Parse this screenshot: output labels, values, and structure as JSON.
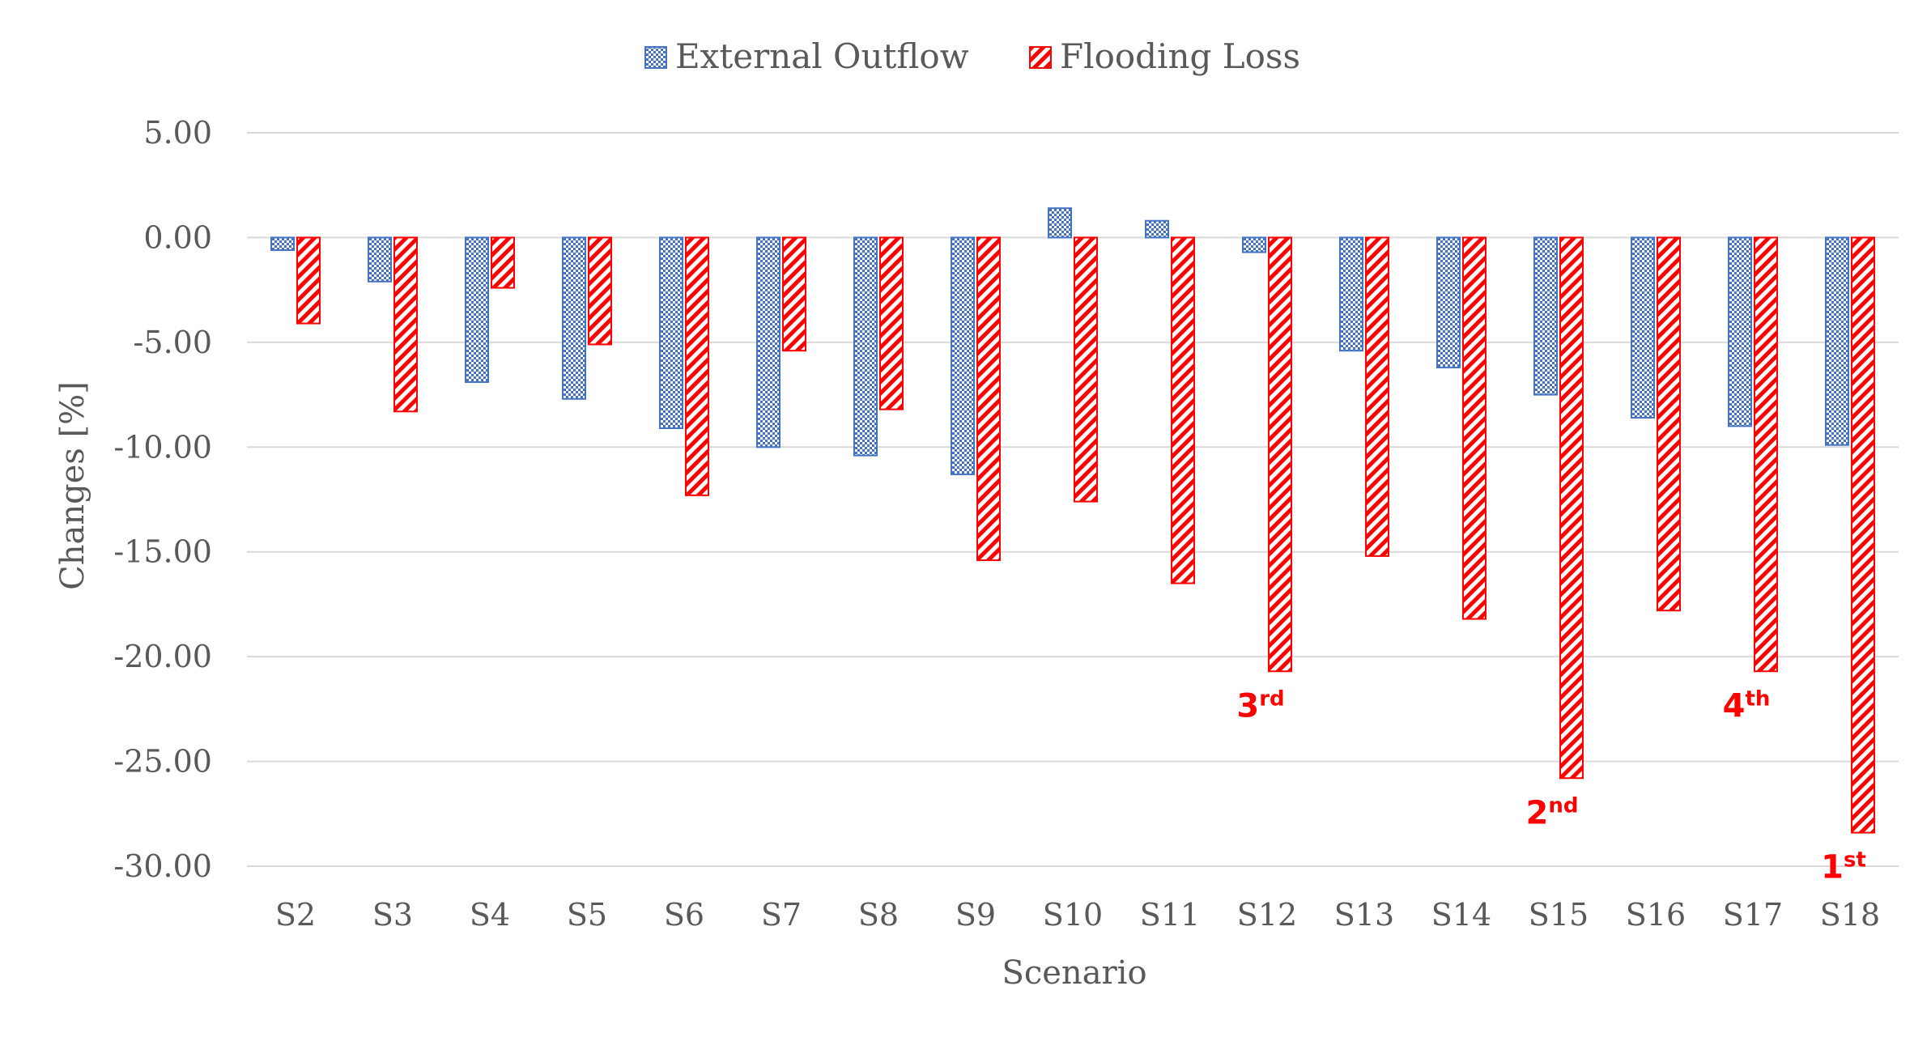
{
  "chart_data": {
    "type": "bar",
    "xlabel": "Scenario",
    "ylabel": "Changes [%]",
    "ylim": [
      -30,
      5
    ],
    "yticks": [
      "5.00",
      "0.00",
      "-5.00",
      "-10.00",
      "-15.00",
      "-20.00",
      "-25.00",
      "-30.00"
    ],
    "ytick_values": [
      5,
      0,
      -5,
      -10,
      -15,
      -20,
      -25,
      -30
    ],
    "grid": "horizontal",
    "legend_position": "top",
    "categories": [
      "S2",
      "S3",
      "S4",
      "S5",
      "S6",
      "S7",
      "S8",
      "S9",
      "S10",
      "S11",
      "S12",
      "S13",
      "S14",
      "S15",
      "S16",
      "S17",
      "S18"
    ],
    "series": [
      {
        "name": "External Outflow",
        "color": "#4472c4",
        "pattern": "dotted-grid",
        "values": [
          -0.6,
          -2.1,
          -6.9,
          -7.7,
          -9.1,
          -10.0,
          -10.4,
          -11.3,
          1.4,
          0.8,
          -0.7,
          -5.4,
          -6.2,
          -7.5,
          -8.6,
          -9.0,
          -9.9
        ]
      },
      {
        "name": "Flooding Loss",
        "color": "#ff0000",
        "pattern": "diagonal-stripes",
        "values": [
          -4.1,
          -8.3,
          -2.4,
          -5.1,
          -12.3,
          -5.4,
          -8.2,
          -15.4,
          -12.6,
          -16.5,
          -20.7,
          -15.2,
          -18.2,
          -25.8,
          -17.8,
          -20.7,
          -28.4
        ]
      }
    ],
    "annotations": [
      {
        "category": "S12",
        "num": "3",
        "sup": "rd",
        "color": "#ff0000"
      },
      {
        "category": "S15",
        "num": "2",
        "sup": "nd",
        "color": "#ff0000"
      },
      {
        "category": "S17",
        "num": "4",
        "sup": "th",
        "color": "#ff0000"
      },
      {
        "category": "S18",
        "num": "1",
        "sup": "st",
        "color": "#ff0000"
      }
    ]
  }
}
